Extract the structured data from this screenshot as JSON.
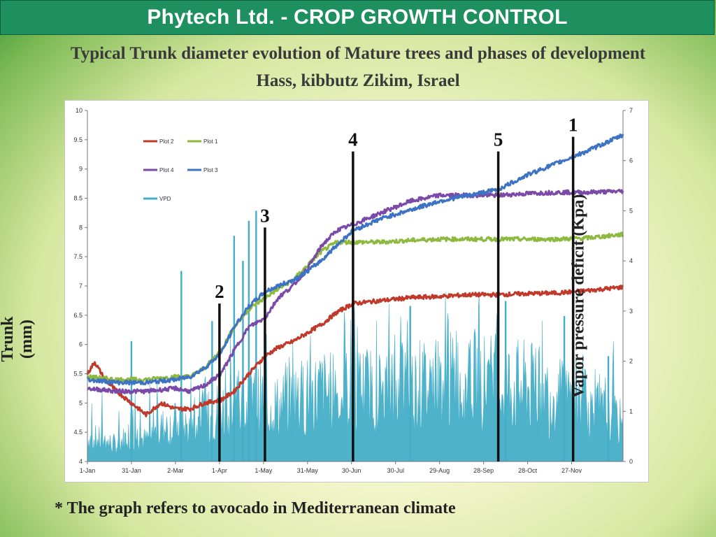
{
  "header": {
    "title": "Phytech Ltd. - CROP GROWTH CONTROL",
    "bg_color": "#1e9060"
  },
  "slide": {
    "title_line1": "Typical Trunk diameter evolution of Mature trees and phases of development",
    "title_line2": "Hass, kibbutz Zikim, Israel",
    "footnote": "* The graph refers to avocado in Mediterranean climate"
  },
  "chart_data": {
    "type": "line",
    "ylabel": "Trunk (mm)",
    "y2label": "Vapor pressure deficit (Kpa)",
    "ylim": [
      4,
      10
    ],
    "y2lim": [
      0,
      7
    ],
    "yticks": [
      "4",
      "4.5",
      "5",
      "5.5",
      "6",
      "6.5",
      "7",
      "7.5",
      "8",
      "8.5",
      "9",
      "9.5",
      "10"
    ],
    "y2ticks": [
      "0",
      "1",
      "2",
      "3",
      "4",
      "5",
      "6",
      "7"
    ],
    "x_tick_labels": [
      "1-Jan",
      "31-Jan",
      "2-Mar",
      "1-Apr",
      "1-May",
      "31-May",
      "30-Jun",
      "30-Jul",
      "29-Aug",
      "28-Sep",
      "28-Oct",
      "27-Nov"
    ],
    "x_range_days": [
      0,
      365
    ],
    "grid": false,
    "legend_position": "top-left",
    "series": [
      {
        "name": "Plot 2",
        "color": "#c0392b",
        "axis": "left",
        "x": [
          0,
          5,
          12,
          20,
          30,
          40,
          50,
          60,
          70,
          80,
          91,
          100,
          110,
          121,
          130,
          140,
          150,
          160,
          170,
          181,
          200,
          220,
          240,
          260,
          280,
          300,
          320,
          340,
          365
        ],
        "y": [
          5.5,
          5.7,
          5.4,
          5.2,
          5.0,
          4.8,
          5.0,
          4.9,
          4.9,
          5.0,
          5.05,
          5.2,
          5.5,
          5.8,
          5.95,
          6.05,
          6.2,
          6.35,
          6.55,
          6.7,
          6.75,
          6.8,
          6.82,
          6.85,
          6.85,
          6.87,
          6.88,
          6.92,
          6.98
        ]
      },
      {
        "name": "Plot 1",
        "color": "#8dba3e",
        "axis": "left",
        "x": [
          0,
          20,
          40,
          60,
          70,
          80,
          91,
          100,
          110,
          121,
          130,
          140,
          150,
          160,
          170,
          181,
          200,
          220,
          240,
          260,
          280,
          300,
          320,
          340,
          365
        ],
        "y": [
          5.45,
          5.4,
          5.4,
          5.45,
          5.45,
          5.6,
          5.9,
          6.3,
          6.6,
          6.8,
          6.95,
          7.1,
          7.35,
          7.6,
          7.75,
          7.75,
          7.75,
          7.78,
          7.8,
          7.8,
          7.8,
          7.8,
          7.8,
          7.82,
          7.88
        ]
      },
      {
        "name": "Plot 4",
        "color": "#7b4aa8",
        "axis": "left",
        "x": [
          0,
          20,
          40,
          60,
          70,
          80,
          91,
          100,
          110,
          121,
          130,
          140,
          150,
          160,
          170,
          181,
          200,
          220,
          240,
          260,
          280,
          300,
          320,
          340,
          365
        ],
        "y": [
          5.25,
          5.2,
          5.2,
          5.25,
          5.2,
          5.3,
          5.5,
          5.9,
          6.3,
          6.45,
          6.8,
          7.0,
          7.3,
          7.7,
          7.95,
          8.05,
          8.25,
          8.45,
          8.55,
          8.55,
          8.55,
          8.58,
          8.6,
          8.6,
          8.62
        ]
      },
      {
        "name": "Plot 3",
        "color": "#3d73c4",
        "axis": "left",
        "x": [
          0,
          20,
          40,
          60,
          70,
          80,
          91,
          100,
          110,
          121,
          130,
          140,
          150,
          160,
          170,
          181,
          200,
          220,
          240,
          260,
          280,
          300,
          320,
          340,
          365
        ],
        "y": [
          5.4,
          5.35,
          5.35,
          5.4,
          5.45,
          5.6,
          5.85,
          6.3,
          6.65,
          6.9,
          7.0,
          7.1,
          7.25,
          7.45,
          7.7,
          7.95,
          8.15,
          8.3,
          8.45,
          8.55,
          8.65,
          8.9,
          9.1,
          9.3,
          9.58
        ]
      },
      {
        "name": "VPD",
        "color": "#44aec8",
        "axis": "right",
        "x": [
          0,
          10,
          20,
          30,
          40,
          50,
          60,
          70,
          80,
          91,
          100,
          110,
          121,
          130,
          140,
          150,
          160,
          170,
          181,
          200,
          220,
          240,
          260,
          280,
          300,
          320,
          340,
          365
        ],
        "y": [
          0.6,
          0.5,
          0.4,
          0.7,
          0.5,
          0.8,
          0.9,
          0.8,
          1.0,
          1.3,
          1.2,
          1.4,
          1.5,
          1.3,
          1.5,
          1.6,
          1.7,
          1.6,
          1.8,
          1.7,
          1.8,
          1.9,
          2.0,
          1.9,
          1.8,
          1.6,
          1.3,
          0.9
        ],
        "peaks_x": [
          30,
          64,
          85,
          100,
          106,
          110,
          115,
          181,
          220,
          285,
          325,
          355
        ],
        "peaks_y": [
          2.4,
          3.8,
          2.8,
          4.5,
          4.0,
          4.8,
          5.0,
          2.8,
          3.1,
          3.2,
          2.9,
          2.1
        ]
      }
    ],
    "phase_markers": [
      {
        "label": "2",
        "x": 90,
        "top": 6.7
      },
      {
        "label": "3",
        "x": 121,
        "top": 8.0
      },
      {
        "label": "4",
        "x": 181,
        "top": 9.3
      },
      {
        "label": "5",
        "x": 280,
        "top": 9.3
      },
      {
        "label": "1",
        "x": 331,
        "top": 9.55
      }
    ]
  }
}
